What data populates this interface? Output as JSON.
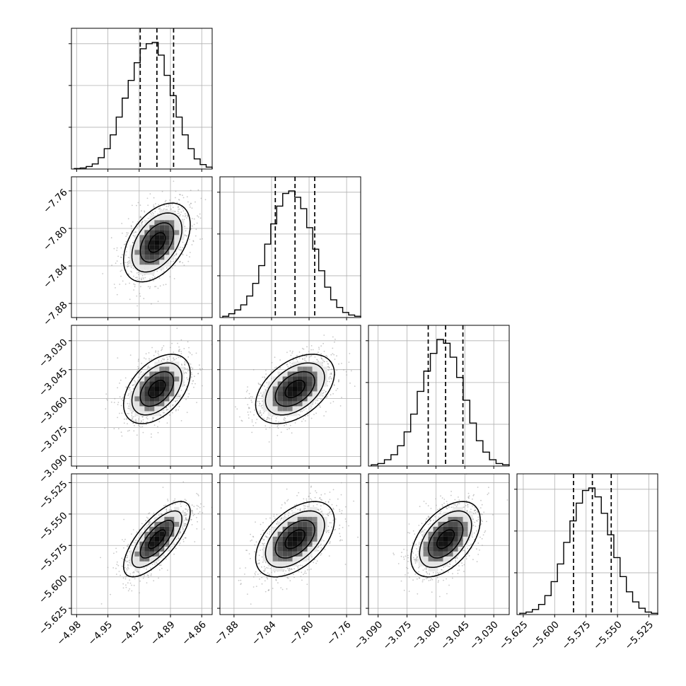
{
  "chart_data": {
    "type": "corner",
    "title": "",
    "parameters": [
      {
        "ticks": [
          -4.98,
          -4.95,
          -4.92,
          -4.89,
          -4.86
        ],
        "tick_labels": [
          "−4.98",
          "−4.95",
          "−4.92",
          "−4.89",
          "−4.86"
        ],
        "range": [
          -4.985,
          -4.85
        ],
        "quantiles": [
          -4.919,
          -4.903,
          -4.887
        ],
        "hist": [
          0.4,
          0.8,
          2,
          4,
          9,
          16,
          27,
          41,
          56,
          70,
          84,
          95,
          99,
          100,
          90,
          74,
          58,
          41,
          27,
          16,
          8,
          3.5,
          1.5
        ]
      },
      {
        "ticks": [
          -7.88,
          -7.84,
          -7.8,
          -7.76
        ],
        "tick_labels": [
          "−7.88",
          "−7.84",
          "−7.80",
          "−7.76"
        ],
        "range": [
          -7.895,
          -7.745
        ],
        "quantiles": [
          -7.836,
          -7.815,
          -7.794
        ],
        "hist": [
          1,
          3,
          6,
          10,
          17,
          27,
          41,
          58,
          74,
          88,
          98,
          100,
          95,
          86,
          71,
          54,
          37,
          24,
          14,
          8,
          4,
          2,
          1
        ]
      },
      {
        "ticks": [
          -3.09,
          -3.075,
          -3.06,
          -3.045,
          -3.03
        ],
        "tick_labels": [
          "−3.090",
          "−3.075",
          "−3.060",
          "−3.045",
          "−3.030"
        ],
        "range": [
          -3.095,
          -3.022
        ],
        "quantiles": [
          -3.064,
          -3.055,
          -3.046
        ],
        "hist": [
          1,
          2,
          5,
          9,
          16,
          27,
          41,
          59,
          75,
          89,
          100,
          97,
          86,
          70,
          52,
          34,
          20,
          11,
          5,
          2,
          1
        ]
      },
      {
        "ticks": [
          -5.625,
          -5.6,
          -5.575,
          -5.55,
          -5.525
        ],
        "tick_labels": [
          "−5.625",
          "−5.600",
          "−5.575",
          "−5.550",
          "−5.525"
        ],
        "range": [
          -5.63,
          -5.518
        ],
        "quantiles": [
          -5.585,
          -5.57,
          -5.555
        ],
        "hist": [
          1,
          2,
          4,
          8,
          15,
          26,
          40,
          57,
          74,
          88,
          98,
          100,
          93,
          80,
          63,
          45,
          30,
          18,
          10,
          5,
          2,
          1
        ]
      }
    ],
    "correlations": [
      [
        1,
        0.45,
        0.45,
        0.72
      ],
      [
        0.45,
        1,
        0.45,
        0.5
      ],
      [
        0.45,
        0.45,
        1,
        0.5
      ],
      [
        0.72,
        0.5,
        0.5,
        1
      ]
    ],
    "contour_levels": [
      0.5,
      1.0,
      1.5,
      2.0
    ],
    "grid": true,
    "colors": {
      "ink": "#000000",
      "grid": "#b0b0b0",
      "scatter": "#9a9a9a"
    }
  }
}
